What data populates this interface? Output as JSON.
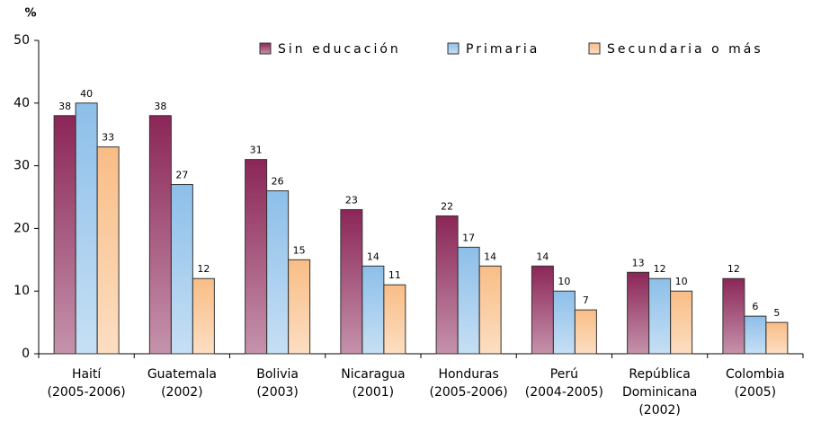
{
  "chart_data": {
    "type": "bar",
    "y_label": "%",
    "categories": [
      [
        "Haití",
        "(2005-2006)"
      ],
      [
        "Guatemala",
        "(2002)"
      ],
      [
        "Bolivia",
        "(2003)"
      ],
      [
        "Nicaragua",
        "(2001)"
      ],
      [
        "Honduras",
        "(2005-2006)"
      ],
      [
        "Perú",
        "(2004-2005)"
      ],
      [
        "República",
        "Dominicana",
        "(2002)"
      ],
      [
        "Colombia",
        "(2005)"
      ]
    ],
    "series": [
      {
        "name": "Sin educación",
        "color": "#8b2657",
        "values": [
          38,
          38,
          31,
          23,
          22,
          14,
          13,
          12
        ]
      },
      {
        "name": "Primaria",
        "color": "#8dbfe9",
        "values": [
          40,
          27,
          26,
          14,
          17,
          10,
          12,
          6
        ]
      },
      {
        "name": "Secundaria o más",
        "color": "#f9bd86",
        "values": [
          33,
          12,
          15,
          11,
          14,
          7,
          10,
          5
        ]
      }
    ],
    "ylim": [
      0,
      50
    ],
    "yticks": [
      0,
      10,
      20,
      30,
      40,
      50
    ],
    "grid": false,
    "legend": "top"
  }
}
